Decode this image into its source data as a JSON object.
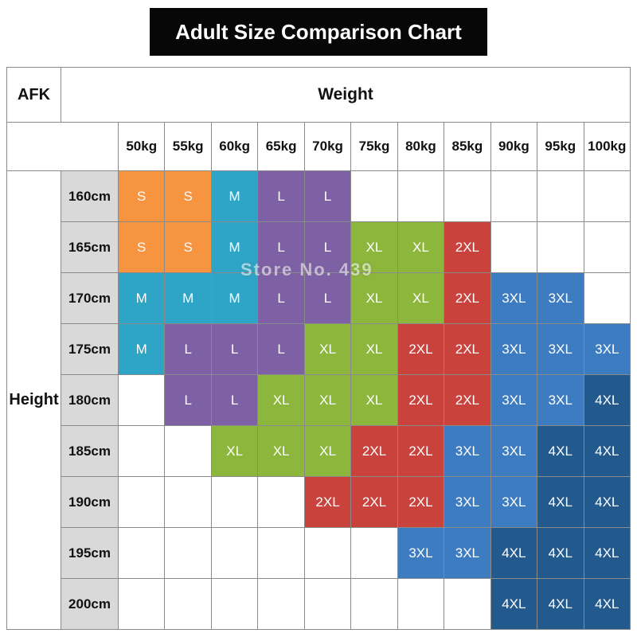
{
  "title": "Adult Size Comparison Chart",
  "watermark": "Store No. 439",
  "axes": {
    "corner": "AFK",
    "columns_label": "Weight",
    "rows_label": "Height"
  },
  "colors": {
    "S": "#F79440",
    "M": "#2EA4C6",
    "L": "#7E61A5",
    "XL": "#8DB63C",
    "2XL": "#C9423C",
    "3XL": "#3E7CC1",
    "4XL": "#235A8D",
    "title_bg": "#070707",
    "row_header_bg": "#D9D9D9",
    "grid_line": "#8A8A8A"
  },
  "chart_data": {
    "type": "table",
    "title": "Adult Size Comparison Chart",
    "xlabel": "Weight",
    "ylabel": "Height",
    "columns": [
      "50kg",
      "55kg",
      "60kg",
      "65kg",
      "70kg",
      "75kg",
      "80kg",
      "85kg",
      "90kg",
      "95kg",
      "100kg"
    ],
    "rows": [
      "160cm",
      "165cm",
      "170cm",
      "175cm",
      "180cm",
      "185cm",
      "190cm",
      "195cm",
      "200cm"
    ],
    "cells": [
      [
        "S",
        "S",
        "M",
        "L",
        "L",
        "",
        "",
        "",
        "",
        "",
        ""
      ],
      [
        "S",
        "S",
        "M",
        "L",
        "L",
        "XL",
        "XL",
        "2XL",
        "",
        "",
        ""
      ],
      [
        "M",
        "M",
        "M",
        "L",
        "L",
        "XL",
        "XL",
        "2XL",
        "3XL",
        "3XL",
        ""
      ],
      [
        "M",
        "L",
        "L",
        "L",
        "XL",
        "XL",
        "2XL",
        "2XL",
        "3XL",
        "3XL",
        "3XL"
      ],
      [
        "",
        "L",
        "L",
        "XL",
        "XL",
        "XL",
        "2XL",
        "2XL",
        "3XL",
        "3XL",
        "4XL"
      ],
      [
        "",
        "",
        "XL",
        "XL",
        "XL",
        "2XL",
        "2XL",
        "3XL",
        "3XL",
        "4XL",
        "4XL"
      ],
      [
        "",
        "",
        "",
        "",
        "2XL",
        "2XL",
        "2XL",
        "3XL",
        "3XL",
        "4XL",
        "4XL"
      ],
      [
        "",
        "",
        "",
        "",
        "",
        "",
        "3XL",
        "3XL",
        "4XL",
        "4XL",
        "4XL"
      ],
      [
        "",
        "",
        "",
        "",
        "",
        "",
        "",
        "",
        "4XL",
        "4XL",
        "4XL"
      ]
    ]
  }
}
